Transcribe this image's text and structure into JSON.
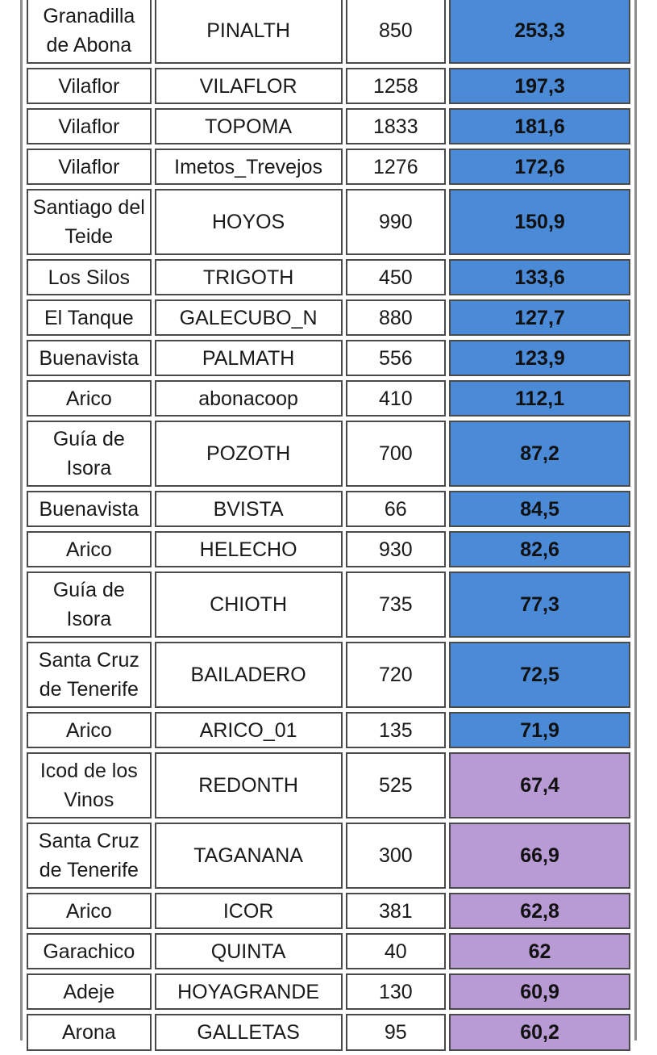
{
  "table": {
    "rows": [
      {
        "municipality": "Granadilla de Abona",
        "station": "PINALTH",
        "altitude": "850",
        "value": "253,3",
        "color": "blue",
        "lines": 2
      },
      {
        "municipality": "Vilaflor",
        "station": "VILAFLOR",
        "altitude": "1258",
        "value": "197,3",
        "color": "blue",
        "lines": 1
      },
      {
        "municipality": "Vilaflor",
        "station": "TOPOMA",
        "altitude": "1833",
        "value": "181,6",
        "color": "blue",
        "lines": 1
      },
      {
        "municipality": "Vilaflor",
        "station": "Imetos_Trevejos",
        "altitude": "1276",
        "value": "172,6",
        "color": "blue",
        "lines": 1
      },
      {
        "municipality": "Santiago del Teide",
        "station": "HOYOS",
        "altitude": "990",
        "value": "150,9",
        "color": "blue",
        "lines": 2
      },
      {
        "municipality": "Los Silos",
        "station": "TRIGOTH",
        "altitude": "450",
        "value": "133,6",
        "color": "blue",
        "lines": 1
      },
      {
        "municipality": "El Tanque",
        "station": "GALECUBO_N",
        "altitude": "880",
        "value": "127,7",
        "color": "blue",
        "lines": 1
      },
      {
        "municipality": "Buenavista",
        "station": "PALMATH",
        "altitude": "556",
        "value": "123,9",
        "color": "blue",
        "lines": 1
      },
      {
        "municipality": "Arico",
        "station": "abonacoop",
        "altitude": "410",
        "value": "112,1",
        "color": "blue",
        "lines": 1
      },
      {
        "municipality": "Guía de Isora",
        "station": "POZOTH",
        "altitude": "700",
        "value": "87,2",
        "color": "blue",
        "lines": 2
      },
      {
        "municipality": "Buenavista",
        "station": "BVISTA",
        "altitude": "66",
        "value": "84,5",
        "color": "blue",
        "lines": 1
      },
      {
        "municipality": "Arico",
        "station": "HELECHO",
        "altitude": "930",
        "value": "82,6",
        "color": "blue",
        "lines": 1
      },
      {
        "municipality": "Guía de Isora",
        "station": "CHIOTH",
        "altitude": "735",
        "value": "77,3",
        "color": "blue",
        "lines": 2
      },
      {
        "municipality": "Santa Cruz de Tenerife",
        "station": "BAILADERO",
        "altitude": "720",
        "value": "72,5",
        "color": "blue",
        "lines": 2
      },
      {
        "municipality": "Arico",
        "station": "ARICO_01",
        "altitude": "135",
        "value": "71,9",
        "color": "blue",
        "lines": 1
      },
      {
        "municipality": "Icod de los Vinos",
        "station": "REDONTH",
        "altitude": "525",
        "value": "67,4",
        "color": "purple",
        "lines": 2
      },
      {
        "municipality": "Santa Cruz de Tenerife",
        "station": "TAGANANA",
        "altitude": "300",
        "value": "66,9",
        "color": "purple",
        "lines": 2
      },
      {
        "municipality": "Arico",
        "station": "ICOR",
        "altitude": "381",
        "value": "62,8",
        "color": "purple",
        "lines": 1
      },
      {
        "municipality": "Garachico",
        "station": "QUINTA",
        "altitude": "40",
        "value": "62",
        "color": "purple",
        "lines": 1
      },
      {
        "municipality": "Adeje",
        "station": "HOYAGRANDE",
        "altitude": "130",
        "value": "60,9",
        "color": "purple",
        "lines": 1
      },
      {
        "municipality": "Arona",
        "station": "GALLETAS",
        "altitude": "95",
        "value": "60,2",
        "color": "purple",
        "lines": 1
      }
    ]
  },
  "colors": {
    "blue": "#4a8ad6",
    "purple": "#b89bd4",
    "border": "#4a4a4a"
  }
}
